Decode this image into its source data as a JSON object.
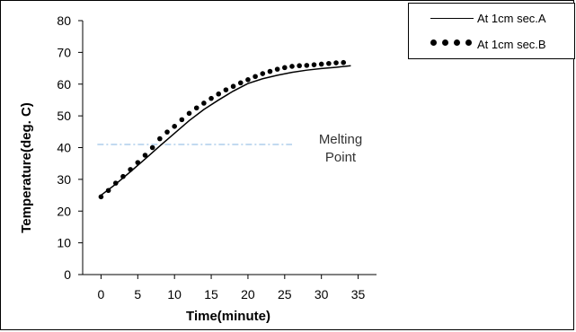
{
  "chart_data": {
    "type": "line",
    "xlabel": "Time(minute)",
    "ylabel": "Temperature(deg. C)",
    "xlim": [
      -2.5,
      37.5
    ],
    "ylim": [
      0,
      80
    ],
    "xticks": [
      0,
      5,
      10,
      15,
      20,
      25,
      30,
      35
    ],
    "yticks": [
      0,
      10,
      20,
      30,
      40,
      50,
      60,
      70,
      80
    ],
    "grid": false,
    "legend_position": "top-right",
    "series": [
      {
        "name": "At 1cm sec.A",
        "style": "solid",
        "color": "#000000",
        "x": [
          0,
          2,
          4,
          6,
          8,
          10,
          12,
          14,
          16,
          18,
          20,
          22,
          24,
          26,
          28,
          30,
          32,
          34
        ],
        "y": [
          25,
          28.5,
          32.4,
          36.4,
          40.5,
          44.5,
          48.5,
          52,
          55,
          57.8,
          60.2,
          61.7,
          62.8,
          63.7,
          64.4,
          64.9,
          65.3,
          65.8
        ]
      },
      {
        "name": "At 1cm sec.B",
        "style": "dotted",
        "color": "#000000",
        "x": [
          0,
          1,
          2,
          3,
          4,
          5,
          6,
          7,
          8,
          9,
          10,
          11,
          12,
          13,
          14,
          15,
          16,
          17,
          18,
          19,
          20,
          21,
          22,
          23,
          24,
          25,
          26,
          27,
          28,
          29,
          30,
          31,
          32,
          33
        ],
        "y": [
          24.5,
          26.5,
          28.8,
          30.9,
          33.1,
          35.3,
          37.6,
          40,
          42.8,
          44.9,
          46.7,
          48.8,
          50.8,
          52.5,
          54,
          55.5,
          56.9,
          58.2,
          59.3,
          60.4,
          61.4,
          62.4,
          63.3,
          64,
          64.7,
          65.2,
          65.6,
          65.8,
          65.9,
          66.1,
          66.3,
          66.5,
          66.7,
          66.8
        ]
      }
    ],
    "reference_line": {
      "y": 41,
      "x_range": [
        -0.5,
        26
      ],
      "color": "#9dc3e6",
      "style": "dash-dot"
    },
    "annotations": [
      "Melting",
      "Point"
    ]
  }
}
